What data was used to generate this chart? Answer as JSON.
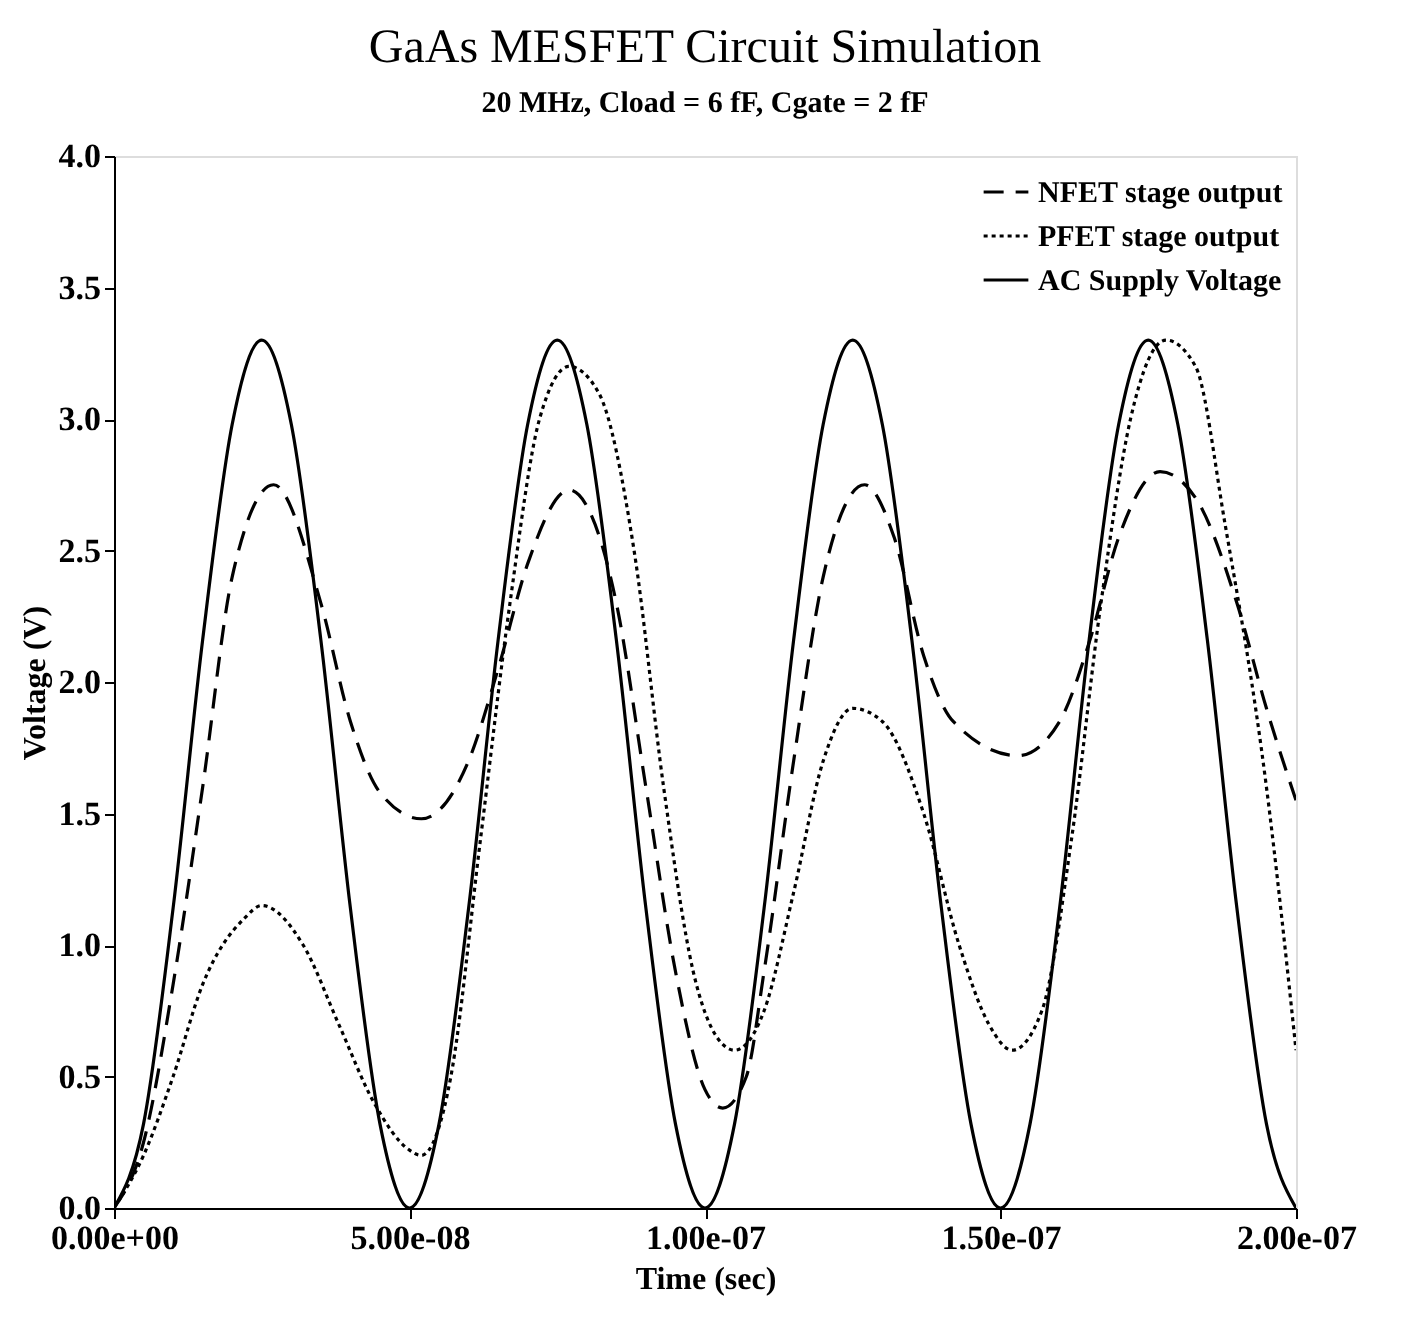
{
  "chart_data": {
    "type": "line",
    "title": "GaAs MESFET Circuit Simulation",
    "subtitle": "20 MHz, Cload = 6 fF, Cgate = 2 fF",
    "xlabel": "Time (sec)",
    "ylabel": "Voltage (V)",
    "xlim": [
      0,
      2e-07
    ],
    "ylim": [
      0,
      4
    ],
    "xticks": [
      {
        "value": 0,
        "label": "0.00e+00"
      },
      {
        "value": 5e-08,
        "label": "5.00e-08"
      },
      {
        "value": 1e-07,
        "label": "1.00e-07"
      },
      {
        "value": 1.5e-07,
        "label": "1.50e-07"
      },
      {
        "value": 2e-07,
        "label": "2.00e-07"
      }
    ],
    "yticks": [
      {
        "value": 0,
        "label": "0.0"
      },
      {
        "value": 0.5,
        "label": "0.5"
      },
      {
        "value": 1,
        "label": "1.0"
      },
      {
        "value": 1.5,
        "label": "1.5"
      },
      {
        "value": 2,
        "label": "2.0"
      },
      {
        "value": 2.5,
        "label": "2.5"
      },
      {
        "value": 3,
        "label": "3.0"
      },
      {
        "value": 3.5,
        "label": "3.5"
      },
      {
        "value": 4,
        "label": "4.0"
      }
    ],
    "grid": false,
    "legend": "top right",
    "marker": "none",
    "series": [
      {
        "name": "NFET stage output",
        "color": "#000000",
        "line_style": "dashed",
        "x": [
          0,
          5e-09,
          1e-08,
          1.5e-08,
          2e-08,
          2.7e-08,
          3.5e-08,
          4e-08,
          4.5e-08,
          5.2e-08,
          6e-08,
          6.5e-08,
          7e-08,
          7.7e-08,
          8.5e-08,
          9e-08,
          9.5e-08,
          1e-07,
          1.03e-07,
          1.07e-07,
          1.1e-07,
          1.15e-07,
          1.2e-07,
          1.27e-07,
          1.32e-07,
          1.37e-07,
          1.42e-07,
          1.53e-07,
          1.6e-07,
          1.65e-07,
          1.7e-07,
          1.77e-07,
          1.83e-07,
          1.9e-07,
          1.95e-07,
          2e-07
        ],
        "values": [
          0,
          0.25,
          0.85,
          1.6,
          2.4,
          2.75,
          2.3,
          1.85,
          1.58,
          1.48,
          1.7,
          2.05,
          2.45,
          2.73,
          2.3,
          1.6,
          0.9,
          0.45,
          0.38,
          0.5,
          0.9,
          1.7,
          2.4,
          2.75,
          2.55,
          2.1,
          1.85,
          1.72,
          1.85,
          2.15,
          2.55,
          2.8,
          2.7,
          2.3,
          1.9,
          1.55
        ]
      },
      {
        "name": "PFET stage output",
        "color": "#000000",
        "line_style": "dotted",
        "x": [
          0,
          5e-09,
          1e-08,
          1.5e-08,
          2.2e-08,
          2.5e-08,
          3.2e-08,
          3.8e-08,
          4.4e-08,
          5e-08,
          5.2e-08,
          5.7e-08,
          6.2e-08,
          6.7e-08,
          7.2e-08,
          7.7e-08,
          8.2e-08,
          8.8e-08,
          9.3e-08,
          9.8e-08,
          1.02e-07,
          1.05e-07,
          1.1e-07,
          1.15e-07,
          1.2e-07,
          1.25e-07,
          1.3e-07,
          1.37e-07,
          1.43e-07,
          1.48e-07,
          1.52e-07,
          1.57e-07,
          1.62e-07,
          1.67e-07,
          1.72e-07,
          1.78e-07,
          1.83e-07,
          1.88e-07,
          1.95e-07,
          2e-07
        ],
        "values": [
          0,
          0.2,
          0.5,
          0.85,
          1.1,
          1.15,
          1.0,
          0.7,
          0.4,
          0.22,
          0.2,
          0.5,
          1.4,
          2.3,
          3.0,
          3.2,
          3.1,
          2.5,
          1.6,
          0.9,
          0.65,
          0.6,
          0.75,
          1.2,
          1.7,
          1.9,
          1.85,
          1.5,
          1.0,
          0.7,
          0.6,
          0.75,
          1.4,
          2.3,
          3.0,
          3.3,
          3.2,
          2.6,
          1.6,
          0.6
        ]
      },
      {
        "name": "AC Supply Voltage",
        "color": "#000000",
        "line_style": "solid",
        "x": [
          0,
          5e-09,
          1e-08,
          1.5e-08,
          2e-08,
          2.5e-08,
          3e-08,
          3.5e-08,
          4e-08,
          4.5e-08,
          5e-08,
          5.5e-08,
          6e-08,
          6.5e-08,
          7e-08,
          7.5e-08,
          8e-08,
          8.5e-08,
          9e-08,
          9.5e-08,
          1e-07,
          1.05e-07,
          1.1e-07,
          1.15e-07,
          1.2e-07,
          1.25e-07,
          1.3e-07,
          1.35e-07,
          1.4e-07,
          1.45e-07,
          1.5e-07,
          1.55e-07,
          1.6e-07,
          1.65e-07,
          1.7e-07,
          1.75e-07,
          1.8e-07,
          1.85e-07,
          1.9e-07,
          1.95e-07,
          2e-07
        ],
        "values": [
          0,
          0.32,
          1.14,
          2.16,
          2.98,
          3.3,
          2.98,
          2.16,
          1.14,
          0.32,
          0,
          0.32,
          1.14,
          2.16,
          2.98,
          3.3,
          2.98,
          2.16,
          1.14,
          0.32,
          0,
          0.32,
          1.14,
          2.16,
          2.98,
          3.3,
          2.98,
          2.16,
          1.14,
          0.32,
          0,
          0.32,
          1.14,
          2.16,
          2.98,
          3.3,
          2.98,
          2.16,
          1.14,
          0.32,
          0
        ]
      }
    ]
  }
}
